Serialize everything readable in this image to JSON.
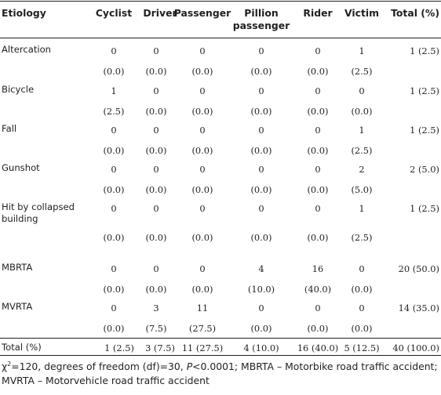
{
  "table": {
    "headers": {
      "etiology": "Etiology",
      "cyclist": "Cyclist",
      "driver": "Driver",
      "passenger": "Passenger",
      "pillion": "Pillion passenger",
      "rider": "Rider",
      "victim": "Victim",
      "total": "Total (%)"
    },
    "rows": [
      {
        "label": "Altercation",
        "counts": [
          "0",
          "0",
          "0",
          "0",
          "0",
          "1"
        ],
        "pcts": [
          "(0.0)",
          "(0.0)",
          "(0.0)",
          "(0.0)",
          "(0.0)",
          "(2.5)"
        ],
        "total": "1 (2.5)"
      },
      {
        "label": "Bicycle",
        "counts": [
          "1",
          "0",
          "0",
          "0",
          "0",
          "0"
        ],
        "pcts": [
          "(2.5)",
          "(0.0)",
          "(0.0)",
          "(0.0)",
          "(0.0)",
          "(0.0)"
        ],
        "total": "1 (2.5)"
      },
      {
        "label": "Fall",
        "counts": [
          "0",
          "0",
          "0",
          "0",
          "0",
          "1"
        ],
        "pcts": [
          "(0.0)",
          "(0.0)",
          "(0.0)",
          "(0.0)",
          "(0.0)",
          "(2.5)"
        ],
        "total": "1 (2.5)"
      },
      {
        "label": "Gunshot",
        "counts": [
          "0",
          "0",
          "0",
          "0",
          "0",
          "2"
        ],
        "pcts": [
          "(0.0)",
          "(0.0)",
          "(0.0)",
          "(0.0)",
          "(0.0)",
          "(5.0)"
        ],
        "total": "2 (5.0)"
      },
      {
        "label": "Hit by collapsed building",
        "counts": [
          "0",
          "0",
          "0",
          "0",
          "0",
          "1"
        ],
        "pcts": [
          "(0.0)",
          "(0.0)",
          "(0.0)",
          "(0.0)",
          "(0.0)",
          "(2.5)"
        ],
        "total": "1 (2.5)"
      },
      {
        "label": "MBRTA",
        "counts": [
          "0",
          "0",
          "0",
          "4",
          "16",
          "0"
        ],
        "pcts": [
          "(0.0)",
          "(0.0)",
          "(0.0)",
          "(10.0)",
          "(40.0)",
          "(0.0)"
        ],
        "total": "20 (50.0)"
      },
      {
        "label": "MVRTA",
        "counts": [
          "0",
          "3",
          "11",
          "0",
          "0",
          "0"
        ],
        "pcts": [
          "(0.0)",
          "(7.5)",
          "(27.5)",
          "(0.0)",
          "(0.0)",
          "(0.0)"
        ],
        "total": "14 (35.0)"
      }
    ],
    "totals_row": {
      "label": "Total (%)",
      "values": [
        "1 (2.5)",
        "3 (7.5)",
        "11 (27.5)",
        "4 (10.0)",
        "16 (40.0)",
        "5 (12.5)"
      ],
      "total": "40 (100.0)"
    }
  },
  "footnote": {
    "chi": "χ",
    "sup": "2",
    "part1": "=120, degrees of freedom (df)=30, ",
    "p": "P",
    "part2": "<0.0001; MBRTA – Motorbike road traffic accident; MVRTA – Motorvehicle road traffic accident"
  }
}
